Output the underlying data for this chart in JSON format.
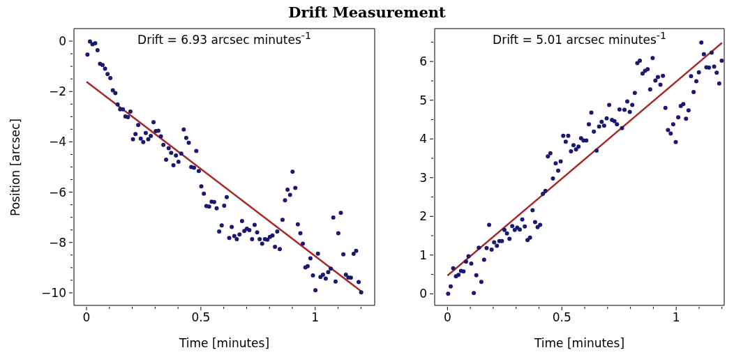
{
  "chart_data": [
    {
      "type": "scatter",
      "title": "Drift Measurement",
      "xlabel": "Time [minutes]",
      "ylabel": "Position [arcsec]",
      "annotations": [
        "Drift = 6.93 arcsec minutes$^{-1}$"
      ],
      "xlim": [
        -0.055,
        1.26
      ],
      "ylim": [
        -10.5,
        0.5
      ],
      "xticks": [
        0,
        {
          "value": 0.1,
          "label": null
        },
        {
          "value": 0.2,
          "label": null
        },
        {
          "value": 0.3,
          "label": null
        },
        {
          "value": 0.4,
          "label": null
        },
        0.5,
        {
          "value": 0.6,
          "label": null
        },
        {
          "value": 0.7,
          "label": null
        },
        {
          "value": 0.8,
          "label": null
        },
        {
          "value": 0.9,
          "label": null
        },
        1,
        {
          "value": 1.1,
          "label": null
        },
        {
          "value": 1.2,
          "label": null
        }
      ],
      "yticks": [
        0,
        {
          "value": -0.5,
          "label": null
        },
        {
          "value": -1,
          "label": null
        },
        {
          "value": -1.5,
          "label": null
        },
        {
          "value": -2,
          "label": "−2"
        },
        {
          "value": -2.5,
          "label": null
        },
        {
          "value": -3,
          "label": null
        },
        {
          "value": -3.5,
          "label": null
        },
        {
          "value": -4,
          "label": "−4"
        },
        {
          "value": -4.5,
          "label": null
        },
        {
          "value": -5,
          "label": null
        },
        {
          "value": -5.5,
          "label": null
        },
        {
          "value": -6,
          "label": "−6"
        },
        {
          "value": -6.5,
          "label": null
        },
        {
          "value": -7,
          "label": null
        },
        {
          "value": -7.5,
          "label": null
        },
        {
          "value": -8,
          "label": "−8"
        },
        {
          "value": -8.5,
          "label": null
        },
        {
          "value": -9,
          "label": null
        },
        {
          "value": -9.5,
          "label": null
        },
        {
          "value": -10,
          "label": "−10"
        }
      ],
      "series": [
        {
          "type": "scatter",
          "marker": "circle",
          "color": "#191970",
          "x": [
            0.004,
            0.015,
            0.026,
            0.038,
            0.048,
            0.059,
            0.07,
            0.081,
            0.092,
            0.104,
            0.115,
            0.126,
            0.136,
            0.147,
            0.159,
            0.17,
            0.181,
            0.192,
            0.203,
            0.214,
            0.226,
            0.237,
            0.248,
            0.259,
            0.27,
            0.281,
            0.293,
            0.303,
            0.314,
            0.325,
            0.336,
            0.348,
            0.359,
            0.37,
            0.38,
            0.391,
            0.402,
            0.414,
            0.425,
            0.436,
            0.447,
            0.458,
            0.47,
            0.48,
            0.491,
            0.502,
            0.513,
            0.524,
            0.536,
            0.547,
            0.558,
            0.569,
            0.58,
            0.591,
            0.602,
            0.613,
            0.624,
            0.635,
            0.646,
            0.657,
            0.669,
            0.68,
            0.69,
            0.701,
            0.712,
            0.724,
            0.735,
            0.746,
            0.757,
            0.768,
            0.78,
            0.791,
            0.802,
            0.813,
            0.824,
            0.834,
            0.845,
            0.857,
            0.868,
            0.879,
            0.89,
            0.901,
            0.913,
            0.924,
            0.935,
            0.946,
            0.957,
            0.967,
            0.979,
            0.99,
            1.001,
            1.012,
            1.023,
            1.034,
            1.046,
            1.057,
            1.068,
            1.079,
            1.089,
            1.101,
            1.112,
            1.123,
            1.134,
            1.145,
            1.156,
            1.168,
            1.179,
            1.19,
            1.201
          ],
          "values": [
            -0.53,
            -0.01,
            -0.12,
            -0.08,
            -0.36,
            -0.9,
            -0.95,
            -1.09,
            -1.31,
            -1.47,
            -1.95,
            -2.06,
            -2.51,
            -2.71,
            -2.71,
            -2.99,
            -3.02,
            -2.8,
            -3.9,
            -3.69,
            -3.33,
            -3.87,
            -4.01,
            -3.65,
            -3.9,
            -3.77,
            -3.22,
            -3.57,
            -3.56,
            -3.78,
            -4.12,
            -4.71,
            -4.25,
            -4.44,
            -4.93,
            -4.54,
            -4.79,
            -4.47,
            -3.51,
            -3.84,
            -4.04,
            -5.0,
            -5.03,
            -4.36,
            -5.16,
            -5.77,
            -6.06,
            -6.55,
            -6.57,
            -6.38,
            -6.39,
            -6.64,
            -7.56,
            -7.32,
            -6.54,
            -6.2,
            -7.82,
            -7.38,
            -7.74,
            -7.87,
            -7.68,
            -7.15,
            -7.54,
            -7.45,
            -7.51,
            -7.87,
            -7.3,
            -7.6,
            -7.87,
            -8.05,
            -7.87,
            -7.89,
            -7.78,
            -7.72,
            -8.17,
            -7.56,
            -8.26,
            -7.1,
            -6.32,
            -5.9,
            -6.11,
            -5.19,
            -5.83,
            -7.28,
            -7.63,
            -8.05,
            -8.99,
            -8.94,
            -8.63,
            -9.31,
            -9.9,
            -8.44,
            -9.37,
            -9.28,
            -9.43,
            -9.18,
            -9.04,
            -7.01,
            -9.55,
            -7.63,
            -6.82,
            -8.47,
            -9.28,
            -9.39,
            -9.4,
            -8.45,
            -8.33,
            -9.57,
            -9.98
          ]
        },
        {
          "type": "line",
          "color": "#a52a2a",
          "x": [
            0,
            1.2
          ],
          "values": [
            -1.61,
            -9.93
          ]
        }
      ]
    },
    {
      "type": "scatter",
      "xlabel": "Time [minutes]",
      "annotations": [
        "Drift = 5.01 arcsec minutes$^{-1}$"
      ],
      "xlim": [
        -0.056,
        1.21
      ],
      "ylim": [
        -0.3,
        6.85
      ],
      "xticks": [
        0,
        {
          "value": 0.1,
          "label": null
        },
        {
          "value": 0.2,
          "label": null
        },
        {
          "value": 0.3,
          "label": null
        },
        {
          "value": 0.4,
          "label": null
        },
        0.5,
        {
          "value": 0.6,
          "label": null
        },
        {
          "value": 0.7,
          "label": null
        },
        {
          "value": 0.8,
          "label": null
        },
        {
          "value": 0.9,
          "label": null
        },
        1,
        {
          "value": 1.1,
          "label": null
        },
        {
          "value": 1.2,
          "label": null
        }
      ],
      "yticks": [
        0,
        {
          "value": 0.5,
          "label": null
        },
        1,
        {
          "value": 1.5,
          "label": null
        },
        2,
        {
          "value": 2.5,
          "label": null
        },
        3,
        {
          "value": 3.5,
          "label": null
        },
        4,
        {
          "value": 4.5,
          "label": null
        },
        5,
        {
          "value": 5.5,
          "label": null
        },
        6,
        {
          "value": 6.5,
          "label": null
        }
      ],
      "series": [
        {
          "type": "scatter",
          "marker": "circle",
          "color": "#191970",
          "x": [
            0.003,
            0.014,
            0.025,
            0.037,
            0.048,
            0.059,
            0.07,
            0.081,
            0.092,
            0.104,
            0.115,
            0.126,
            0.137,
            0.148,
            0.16,
            0.171,
            0.182,
            0.193,
            0.204,
            0.216,
            0.227,
            0.238,
            0.249,
            0.26,
            0.271,
            0.283,
            0.294,
            0.305,
            0.316,
            0.327,
            0.338,
            0.35,
            0.361,
            0.372,
            0.383,
            0.394,
            0.405,
            0.417,
            0.428,
            0.439,
            0.45,
            0.461,
            0.473,
            0.484,
            0.495,
            0.506,
            0.517,
            0.528,
            0.54,
            0.551,
            0.562,
            0.573,
            0.584,
            0.595,
            0.607,
            0.618,
            0.629,
            0.64,
            0.652,
            0.663,
            0.674,
            0.685,
            0.696,
            0.707,
            0.719,
            0.73,
            0.741,
            0.752,
            0.763,
            0.774,
            0.786,
            0.797,
            0.808,
            0.819,
            0.83,
            0.841,
            0.853,
            0.864,
            0.875,
            0.886,
            0.897,
            0.909,
            0.92,
            0.931,
            0.942,
            0.953,
            0.964,
            0.976,
            0.987,
            0.998,
            1.009,
            1.02,
            1.031,
            1.043,
            1.054,
            1.065,
            1.076,
            1.088,
            1.099,
            1.11,
            1.121,
            1.132,
            1.143,
            1.155,
            1.166,
            1.177,
            1.188,
            1.199
          ],
          "values": [
            0.0,
            0.19,
            0.66,
            0.45,
            0.49,
            0.59,
            0.58,
            0.83,
            0.97,
            0.78,
            0.02,
            0.48,
            1.19,
            0.31,
            0.88,
            1.18,
            1.78,
            1.14,
            1.33,
            1.24,
            1.36,
            1.36,
            1.65,
            1.56,
            1.42,
            1.75,
            1.65,
            1.71,
            1.66,
            1.92,
            1.74,
            1.39,
            1.45,
            2.16,
            1.85,
            1.72,
            1.78,
            2.58,
            2.66,
            3.55,
            3.63,
            2.98,
            3.37,
            3.18,
            3.42,
            4.08,
            3.93,
            4.08,
            3.68,
            3.84,
            3.73,
            3.8,
            4.02,
            3.96,
            3.96,
            4.38,
            4.68,
            4.19,
            3.7,
            4.32,
            4.44,
            4.34,
            4.53,
            4.88,
            4.49,
            4.46,
            4.38,
            4.76,
            4.28,
            4.75,
            4.97,
            4.7,
            4.88,
            5.19,
            5.96,
            6.02,
            5.69,
            5.76,
            5.8,
            5.28,
            6.09,
            5.51,
            5.6,
            5.4,
            5.63,
            4.8,
            4.23,
            4.14,
            4.38,
            3.92,
            4.56,
            4.85,
            4.9,
            4.52,
            4.74,
            5.62,
            5.21,
            5.49,
            5.72,
            6.49,
            6.19,
            5.85,
            5.84,
            6.23,
            5.87,
            5.71,
            5.43,
            6.02
          ]
        },
        {
          "type": "line",
          "color": "#a52a2a",
          "x": [
            0,
            1.2
          ],
          "values": [
            0.47,
            6.48
          ]
        }
      ]
    }
  ]
}
